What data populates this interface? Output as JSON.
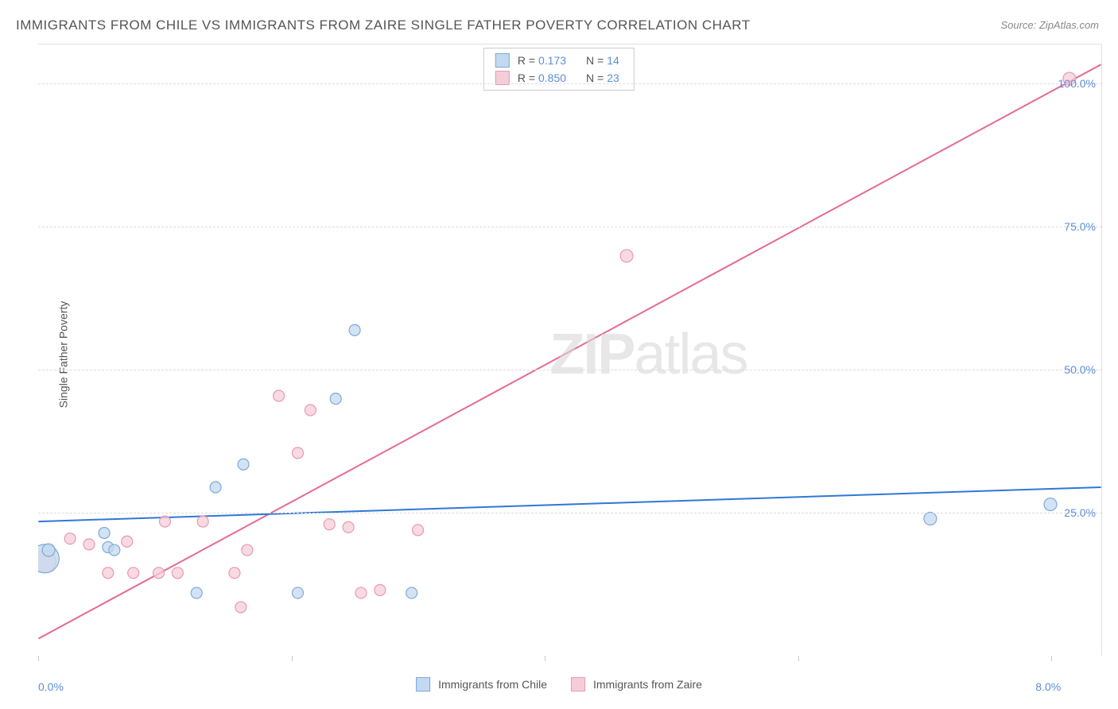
{
  "title": "IMMIGRANTS FROM CHILE VS IMMIGRANTS FROM ZAIRE SINGLE FATHER POVERTY CORRELATION CHART",
  "source": "Source: ZipAtlas.com",
  "y_axis_label": "Single Father Poverty",
  "watermark": {
    "bold": "ZIP",
    "rest": "atlas"
  },
  "chart": {
    "type": "scatter",
    "xlim": [
      0,
      8.4
    ],
    "ylim": [
      0,
      107
    ],
    "x_ticks": [
      0.0,
      2.0,
      4.0,
      6.0,
      8.0
    ],
    "x_tick_labels": [
      "0.0%",
      "",
      "",
      "",
      "8.0%"
    ],
    "y_ticks": [
      25.0,
      50.0,
      75.0,
      100.0
    ],
    "y_tick_labels": [
      "25.0%",
      "50.0%",
      "75.0%",
      "100.0%"
    ],
    "grid_color": "#dddddd",
    "background_color": "#ffffff",
    "series": [
      {
        "name": "Immigrants from Chile",
        "fill": "#c3d9f0",
        "stroke": "#7fa8d9",
        "line_color": "#2f78d6",
        "r_value": "0.173",
        "n_value": "14",
        "regression": {
          "x1": 0,
          "y1": 23.5,
          "x2": 8.4,
          "y2": 29.5
        },
        "points": [
          {
            "x": 0.05,
            "y": 17.0,
            "r": 18
          },
          {
            "x": 0.08,
            "y": 18.5,
            "r": 8
          },
          {
            "x": 0.55,
            "y": 19.0,
            "r": 7
          },
          {
            "x": 0.52,
            "y": 21.5,
            "r": 7
          },
          {
            "x": 0.6,
            "y": 18.5,
            "r": 7
          },
          {
            "x": 1.25,
            "y": 11.0,
            "r": 7
          },
          {
            "x": 1.4,
            "y": 29.5,
            "r": 7
          },
          {
            "x": 1.62,
            "y": 33.5,
            "r": 7
          },
          {
            "x": 2.05,
            "y": 11.0,
            "r": 7
          },
          {
            "x": 2.35,
            "y": 45.0,
            "r": 7
          },
          {
            "x": 2.5,
            "y": 57.0,
            "r": 7
          },
          {
            "x": 2.95,
            "y": 11.0,
            "r": 7
          },
          {
            "x": 7.05,
            "y": 24.0,
            "r": 8
          },
          {
            "x": 8.0,
            "y": 26.5,
            "r": 8
          }
        ]
      },
      {
        "name": "Immigrants from Zaire",
        "fill": "#f5cdd8",
        "stroke": "#e998b1",
        "line_color": "#e56a94",
        "r_value": "0.850",
        "n_value": "23",
        "regression": {
          "x1": 0,
          "y1": 3.0,
          "x2": 8.4,
          "y2": 103.5
        },
        "points": [
          {
            "x": 0.05,
            "y": 16.5,
            "r": 14
          },
          {
            "x": 0.25,
            "y": 20.5,
            "r": 7
          },
          {
            "x": 0.4,
            "y": 19.5,
            "r": 7
          },
          {
            "x": 0.55,
            "y": 14.5,
            "r": 7
          },
          {
            "x": 0.7,
            "y": 20.0,
            "r": 7
          },
          {
            "x": 0.75,
            "y": 14.5,
            "r": 7
          },
          {
            "x": 0.95,
            "y": 14.5,
            "r": 7
          },
          {
            "x": 1.0,
            "y": 23.5,
            "r": 7
          },
          {
            "x": 1.1,
            "y": 14.5,
            "r": 7
          },
          {
            "x": 1.3,
            "y": 23.5,
            "r": 7
          },
          {
            "x": 1.55,
            "y": 14.5,
            "r": 7
          },
          {
            "x": 1.6,
            "y": 8.5,
            "r": 7
          },
          {
            "x": 1.65,
            "y": 18.5,
            "r": 7
          },
          {
            "x": 1.9,
            "y": 45.5,
            "r": 7
          },
          {
            "x": 2.05,
            "y": 35.5,
            "r": 7
          },
          {
            "x": 2.15,
            "y": 43.0,
            "r": 7
          },
          {
            "x": 2.3,
            "y": 23.0,
            "r": 7
          },
          {
            "x": 2.45,
            "y": 22.5,
            "r": 7
          },
          {
            "x": 2.55,
            "y": 11.0,
            "r": 7
          },
          {
            "x": 2.7,
            "y": 11.5,
            "r": 7
          },
          {
            "x": 3.0,
            "y": 22.0,
            "r": 7
          },
          {
            "x": 4.65,
            "y": 70.0,
            "r": 8
          },
          {
            "x": 8.15,
            "y": 101.0,
            "r": 8
          }
        ]
      }
    ]
  }
}
